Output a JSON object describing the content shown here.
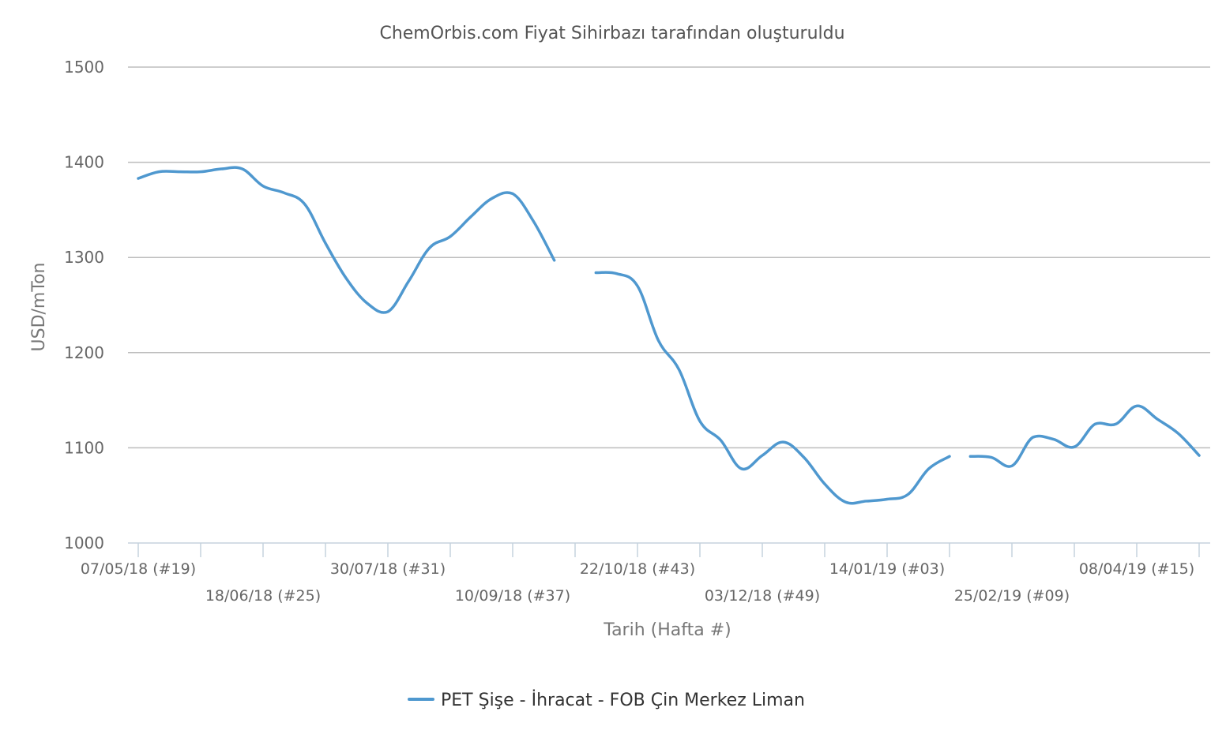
{
  "chart_data": {
    "type": "line",
    "title": "ChemOrbis.com Fiyat Sihirbazı tarafından oluşturuldu",
    "xlabel": "Tarih (Hafta #)",
    "ylabel": "USD/mTon",
    "ylim": [
      1000,
      1500
    ],
    "yticks": [
      1000,
      1100,
      1200,
      1300,
      1400,
      1500
    ],
    "grid": true,
    "legend_position": "bottom-center",
    "x_start": "07/05/18 (#19)",
    "x_end": "22/04/19 (#17)",
    "x_tick_labels": [
      {
        "week": 0,
        "label": "07/05/18 (#19)"
      },
      {
        "week": 6,
        "label": "18/06/18 (#25)"
      },
      {
        "week": 12,
        "label": "30/07/18 (#31)"
      },
      {
        "week": 18,
        "label": "10/09/18 (#37)"
      },
      {
        "week": 24,
        "label": "22/10/18 (#43)"
      },
      {
        "week": 30,
        "label": "03/12/18 (#49)"
      },
      {
        "week": 36,
        "label": "14/01/19 (#03)"
      },
      {
        "week": 42,
        "label": "25/02/19 (#09)"
      },
      {
        "week": 48,
        "label": "08/04/19 (#15)"
      }
    ],
    "x_minor_ticks": [
      0,
      3,
      6,
      9,
      12,
      15,
      18,
      21,
      24,
      27,
      30,
      33,
      36,
      39,
      42,
      45,
      48,
      51
    ],
    "series": [
      {
        "name": "PET Şişe - İhracat - FOB Çin Merkez Liman",
        "color": "#4f98cf",
        "segments": [
          [
            [
              0,
              1383
            ],
            [
              1,
              1390
            ],
            [
              2,
              1390
            ],
            [
              3,
              1390
            ],
            [
              4,
              1393
            ],
            [
              5,
              1393
            ],
            [
              6,
              1375
            ],
            [
              7,
              1368
            ],
            [
              8,
              1356
            ],
            [
              9,
              1315
            ],
            [
              10,
              1278
            ],
            [
              11,
              1252
            ],
            [
              12,
              1243
            ],
            [
              13,
              1275
            ],
            [
              14,
              1310
            ],
            [
              15,
              1322
            ],
            [
              16,
              1343
            ],
            [
              17,
              1362
            ],
            [
              18,
              1367
            ],
            [
              19,
              1338
            ],
            [
              20,
              1297
            ]
          ],
          [
            [
              22,
              1284
            ],
            [
              23,
              1283
            ],
            [
              24,
              1270
            ],
            [
              25,
              1213
            ],
            [
              26,
              1182
            ],
            [
              27,
              1128
            ],
            [
              28,
              1108
            ],
            [
              29,
              1078
            ],
            [
              30,
              1092
            ],
            [
              31,
              1106
            ],
            [
              32,
              1090
            ],
            [
              33,
              1062
            ],
            [
              34,
              1043
            ],
            [
              35,
              1044
            ],
            [
              36,
              1046
            ],
            [
              37,
              1051
            ],
            [
              38,
              1078
            ],
            [
              39,
              1091
            ]
          ],
          [
            [
              40,
              1091
            ],
            [
              41,
              1090
            ],
            [
              42,
              1081
            ],
            [
              43,
              1111
            ],
            [
              44,
              1109
            ],
            [
              45,
              1101
            ],
            [
              46,
              1125
            ],
            [
              47,
              1125
            ],
            [
              48,
              1144
            ],
            [
              49,
              1130
            ],
            [
              50,
              1115
            ],
            [
              51,
              1092
            ]
          ]
        ]
      }
    ]
  }
}
